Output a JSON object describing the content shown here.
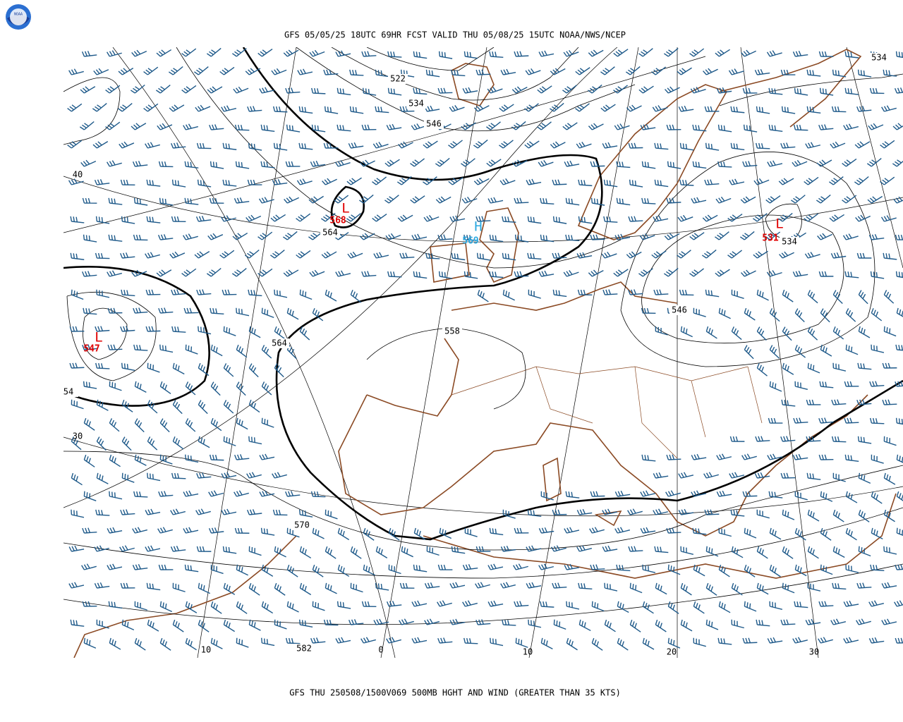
{
  "header": {
    "title": "GFS 05/05/25 18UTC 69HR FCST VALID THU 05/08/25 15UTC NOAA/NWS/NCEP"
  },
  "footer": {
    "caption": "GFS THU 250508/1500V069 500MB HGHT AND WIND (GREATER THAN 35 KTS)"
  },
  "logo": {
    "text": "NOAA"
  },
  "map": {
    "contour_labels": [
      "522",
      "534",
      "546",
      "564",
      "564",
      "558",
      "570",
      "582",
      "534",
      "546",
      "534",
      "54"
    ],
    "pressure_centers": [
      {
        "symbol": "L",
        "value": "568"
      },
      {
        "symbol": "H",
        "value": "569"
      },
      {
        "symbol": "L",
        "value": "547"
      },
      {
        "symbol": "L",
        "value": "531"
      }
    ],
    "latitude_labels": [
      "40",
      "30"
    ],
    "longitude_labels": [
      "10",
      "0",
      "10",
      "20",
      "30"
    ]
  }
}
